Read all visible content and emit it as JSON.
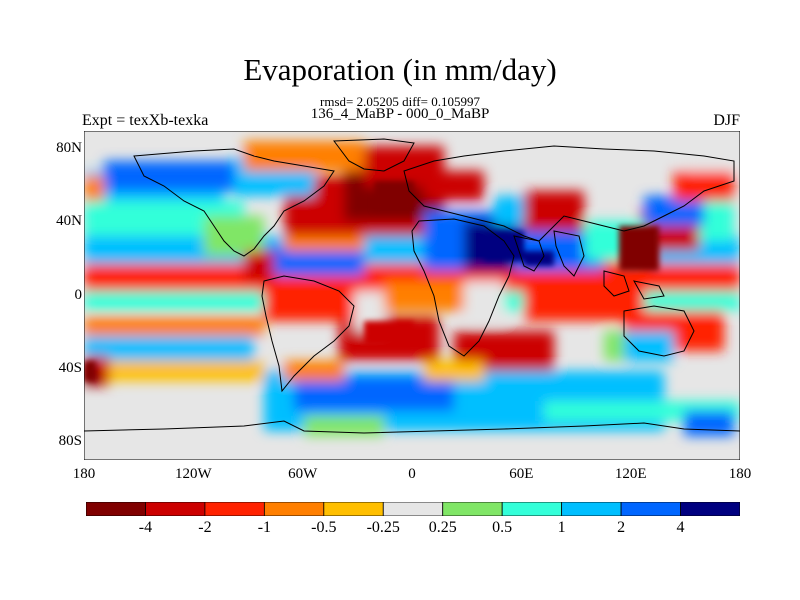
{
  "title": "Evaporation (in mm/day)",
  "subtitle_stats": "rmsd= 2.05205 diff= 0.105997",
  "subtitle_periods": "136_4_MaBP - 000_0_MaBP",
  "left_label": "Expt = texXb-texka",
  "right_label": "DJF",
  "lat_ticks": [
    "80N",
    "40N",
    "0",
    "40S",
    "80S"
  ],
  "lon_ticks": [
    "180",
    "120W",
    "60W",
    "0",
    "60E",
    "120E",
    "180"
  ],
  "colorbar": {
    "labels": [
      "-4",
      "-2",
      "-1",
      "-0.5",
      "-0.25",
      "0.25",
      "0.5",
      "1",
      "2",
      "4"
    ],
    "colors": [
      "#800000",
      "#cc0000",
      "#ff2200",
      "#ff7f00",
      "#ffbf00",
      "#e6e6e6",
      "#80e666",
      "#33ffd9",
      "#00bfff",
      "#0066ff",
      "#000080"
    ]
  },
  "colors": {
    "land_fill": "#e6e6e6",
    "coastline": "#000000"
  }
}
